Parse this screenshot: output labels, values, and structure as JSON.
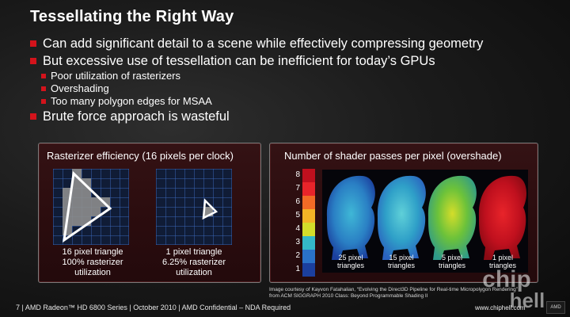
{
  "slide": {
    "title": "Tessellating the Right Way",
    "bullets": [
      "Can add significant detail to a scene while effectively compressing geometry",
      "But excessive use of tessellation can be inefficient for today’s GPUs"
    ],
    "sub_bullets": [
      "Poor utilization of rasterizers",
      "Overshading",
      "Too many polygon edges for MSAA"
    ],
    "last_bullet": "Brute force approach is wasteful"
  },
  "left_panel": {
    "title": "Rasterizer efficiency (16 pixels per clock)",
    "captions": [
      [
        "16 pixel triangle",
        "100% rasterizer",
        "utilization"
      ],
      [
        "1 pixel triangle",
        "6.25% rasterizer",
        "utilization"
      ]
    ]
  },
  "right_panel": {
    "title": "Number of shader passes per pixel (overshade)",
    "scale_numbers": [
      "8",
      "7",
      "6",
      "5",
      "4",
      "3",
      "2",
      "1"
    ],
    "scale_colors": [
      "#c0101e",
      "#e8242a",
      "#f26a26",
      "#f3b326",
      "#d4dd2a",
      "#34b8c8",
      "#2a72c8",
      "#1b3f9e"
    ],
    "heat_labels": [
      [
        "25 pixel",
        "triangles"
      ],
      [
        "15 pixel",
        "triangles"
      ],
      [
        "5 pixel",
        "triangles"
      ],
      [
        "1 pixel",
        "triangles"
      ]
    ]
  },
  "credit": [
    "Image courtesy of Kayvon Fatahalian, “Evolving the Direct3D Pipeline for Real-time Micropolygon Rendering”",
    "from ACM SIGGRAPH 2010 Class: Beyond Programmable Shading II"
  ],
  "footer": "7 | AMD Radeon™ HD 6800 Series | October 2010 | AMD Confidential – NDA Required",
  "watermark": {
    "site": "www.chiphell.com",
    "logo_text": "chip hell",
    "badge": "AMD"
  }
}
